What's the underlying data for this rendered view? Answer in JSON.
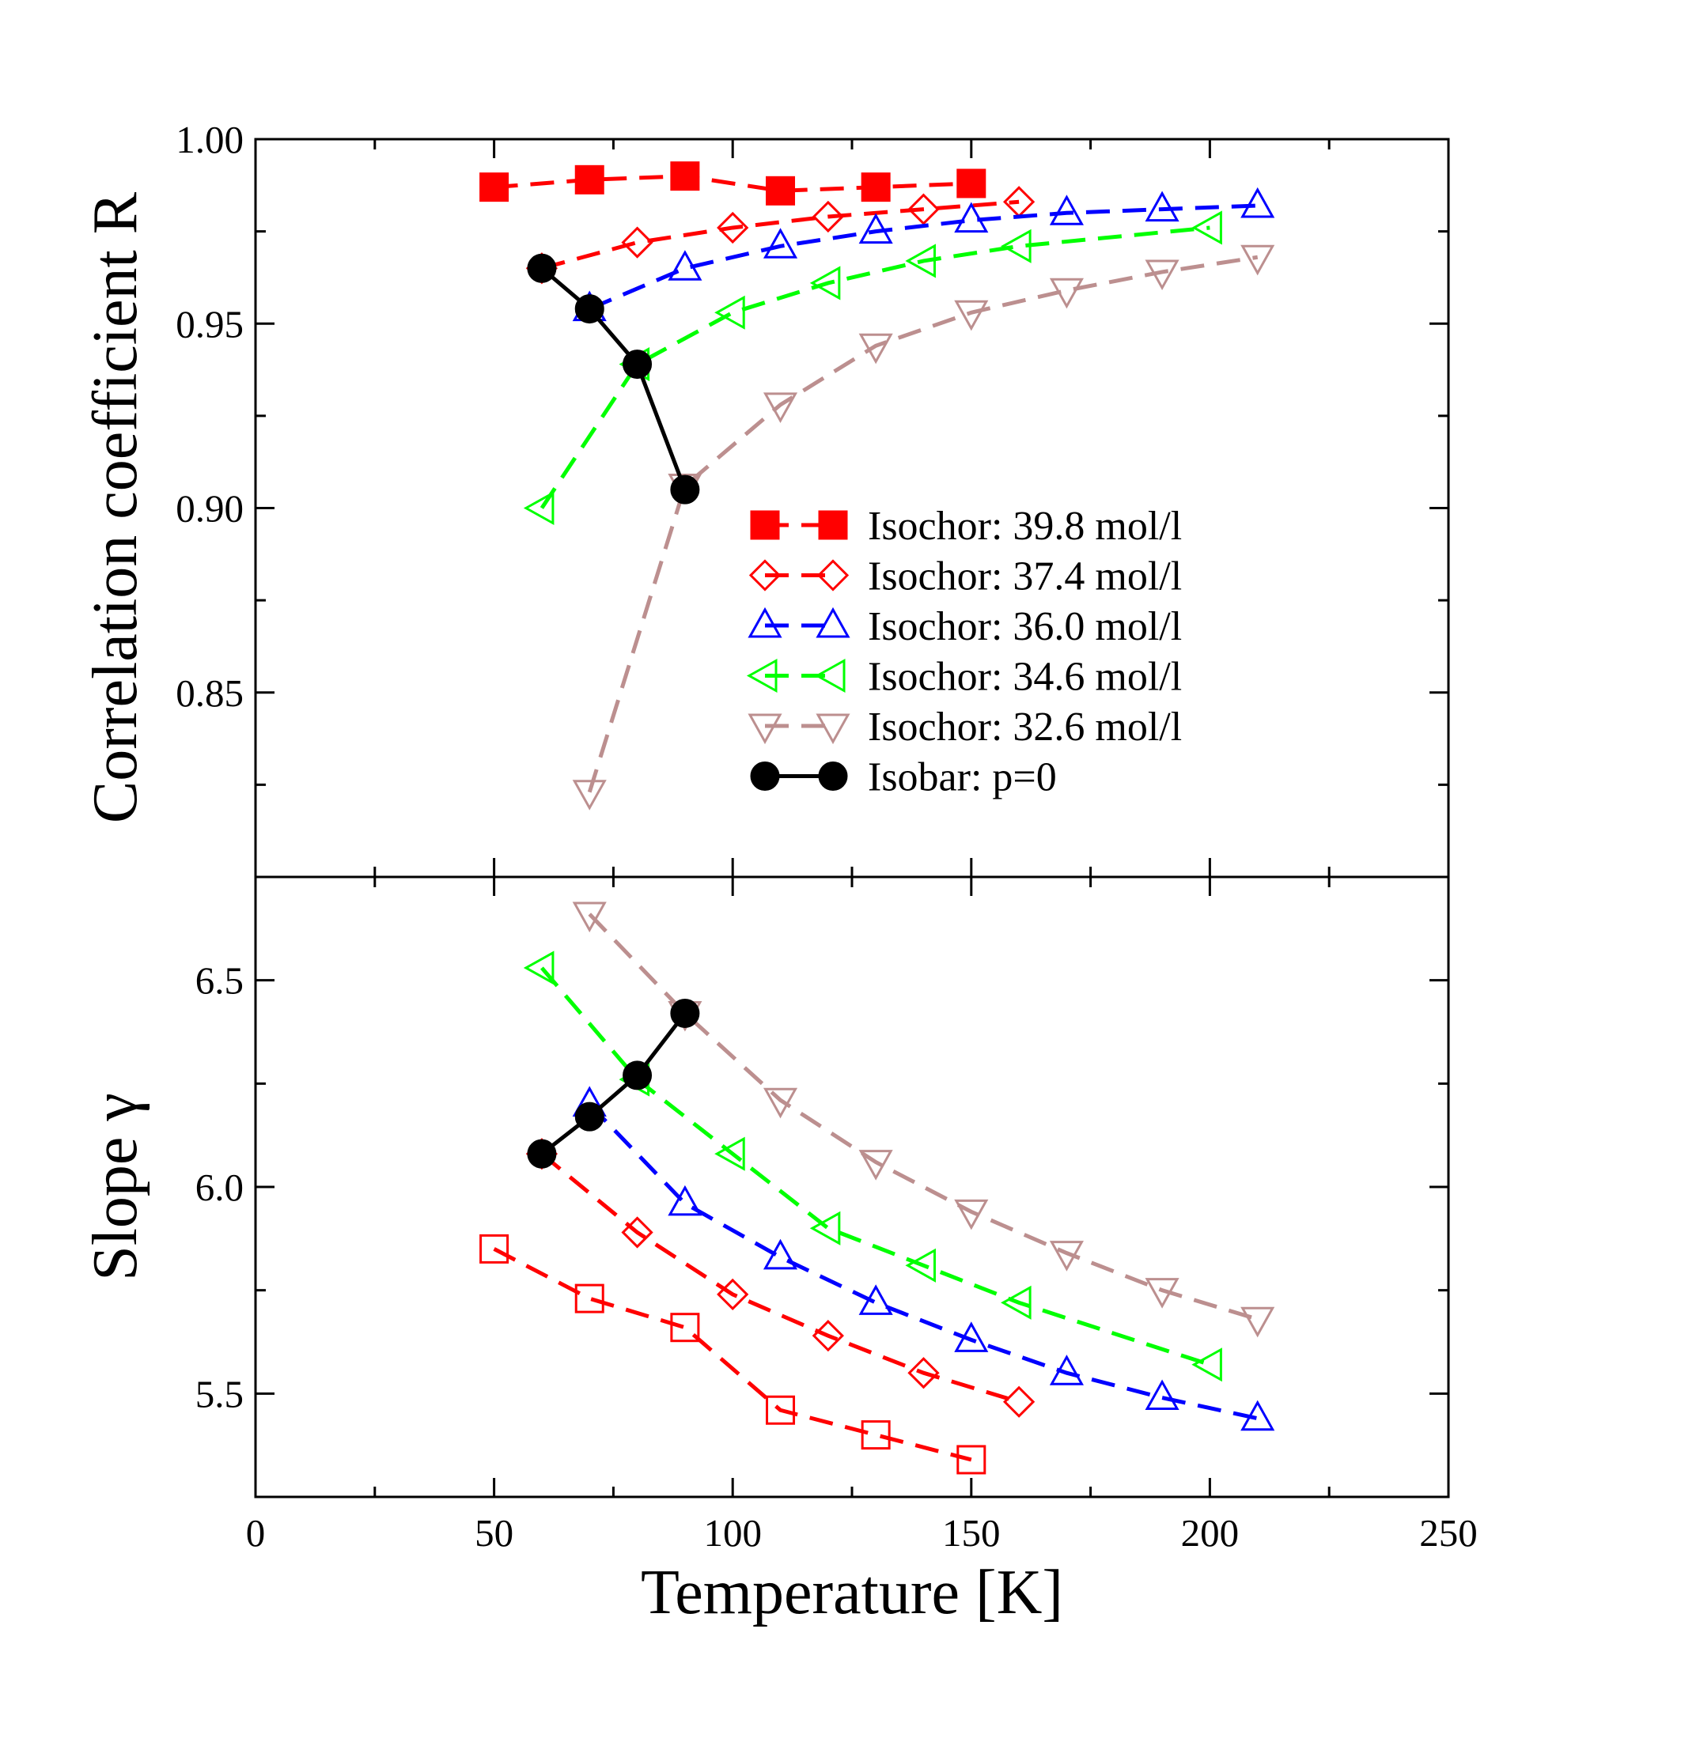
{
  "chart_data": [
    {
      "type": "line",
      "panel": "top",
      "title": "",
      "xlabel": "",
      "ylabel": "Correlation coefficient R",
      "xlim": [
        0,
        250
      ],
      "ylim": [
        0.8,
        1.0
      ],
      "yticks": [
        "0.85",
        "0.90",
        "0.95",
        "1.00"
      ],
      "legend_position": "center-right",
      "series": [
        {
          "name": "Isochor: 39.8 mol/l",
          "color": "#ff0000",
          "marker": "square-filled",
          "dashed": true,
          "x": [
            50,
            70,
            90,
            110,
            130,
            150
          ],
          "y": [
            0.987,
            0.989,
            0.99,
            0.986,
            0.987,
            0.988
          ]
        },
        {
          "name": "Isochor: 37.4 mol/l",
          "color": "#ff0000",
          "marker": "diamond-open",
          "dashed": true,
          "x": [
            60,
            80,
            100,
            120,
            140,
            160
          ],
          "y": [
            0.965,
            0.972,
            0.976,
            0.979,
            0.981,
            0.983
          ]
        },
        {
          "name": "Isochor: 36.0 mol/l",
          "color": "#0000ff",
          "marker": "triangle-up-open",
          "dashed": true,
          "x": [
            70,
            90,
            110,
            130,
            150,
            170,
            190,
            210
          ],
          "y": [
            0.954,
            0.965,
            0.971,
            0.975,
            0.978,
            0.98,
            0.981,
            0.982
          ]
        },
        {
          "name": "Isochor: 34.6 mol/l",
          "color": "#00ff00",
          "marker": "triangle-left-open",
          "dashed": true,
          "x": [
            60,
            80,
            100,
            120,
            140,
            160,
            200
          ],
          "y": [
            0.9,
            0.939,
            0.953,
            0.961,
            0.967,
            0.971,
            0.976
          ]
        },
        {
          "name": "Isochor: 32.6 mol/l",
          "color": "#bc8f8f",
          "marker": "triangle-down-open",
          "dashed": true,
          "x": [
            70,
            90,
            110,
            130,
            150,
            170,
            190,
            210
          ],
          "y": [
            0.823,
            0.906,
            0.928,
            0.944,
            0.953,
            0.959,
            0.964,
            0.968
          ]
        },
        {
          "name": "Isobar:  p=0",
          "color": "#000000",
          "marker": "circle-filled",
          "dashed": false,
          "x": [
            60,
            70,
            80,
            90
          ],
          "y": [
            0.965,
            0.954,
            0.939,
            0.905
          ]
        }
      ]
    },
    {
      "type": "line",
      "panel": "bottom",
      "title": "",
      "xlabel": "Temperature [K]",
      "ylabel": "Slope γ",
      "xlim": [
        0,
        250
      ],
      "ylim": [
        5.25,
        6.75
      ],
      "xticks": [
        "0",
        "50",
        "100",
        "150",
        "200",
        "250"
      ],
      "yticks": [
        "5.5",
        "6.0",
        "6.5"
      ],
      "series": [
        {
          "name": "Isochor: 39.8 mol/l",
          "color": "#ff0000",
          "marker": "square-open",
          "dashed": true,
          "x": [
            50,
            70,
            90,
            110,
            130,
            150
          ],
          "y": [
            5.85,
            5.73,
            5.66,
            5.46,
            5.4,
            5.34
          ]
        },
        {
          "name": "Isochor: 37.4 mol/l",
          "color": "#ff0000",
          "marker": "diamond-open",
          "dashed": true,
          "x": [
            60,
            80,
            100,
            120,
            140,
            160
          ],
          "y": [
            6.08,
            5.89,
            5.74,
            5.64,
            5.55,
            5.48
          ]
        },
        {
          "name": "Isochor: 36.0 mol/l",
          "color": "#0000ff",
          "marker": "triangle-up-open",
          "dashed": true,
          "x": [
            70,
            90,
            110,
            130,
            150,
            170,
            190,
            210
          ],
          "y": [
            6.2,
            5.96,
            5.83,
            5.72,
            5.63,
            5.55,
            5.49,
            5.44
          ]
        },
        {
          "name": "Isochor: 34.6 mol/l",
          "color": "#00ff00",
          "marker": "triangle-left-open",
          "dashed": true,
          "x": [
            60,
            80,
            100,
            120,
            140,
            160,
            200
          ],
          "y": [
            6.53,
            6.26,
            6.08,
            5.9,
            5.81,
            5.72,
            5.57
          ]
        },
        {
          "name": "Isochor: 32.6 mol/l",
          "color": "#bc8f8f",
          "marker": "triangle-down-open",
          "dashed": true,
          "x": [
            70,
            90,
            110,
            130,
            150,
            170,
            190,
            210
          ],
          "y": [
            6.66,
            6.42,
            6.21,
            6.06,
            5.94,
            5.84,
            5.75,
            5.68
          ]
        },
        {
          "name": "Isobar:  p=0",
          "color": "#000000",
          "marker": "circle-filled",
          "dashed": false,
          "x": [
            60,
            70,
            80,
            90
          ],
          "y": [
            6.08,
            6.17,
            6.27,
            6.42
          ]
        }
      ]
    }
  ]
}
